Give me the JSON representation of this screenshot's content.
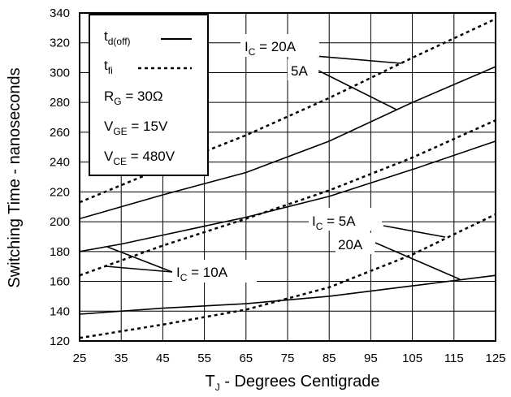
{
  "chart_data": {
    "type": "line",
    "title": "",
    "xlabel": {
      "main": "T",
      "sub": "J",
      "rest": " - Degrees Centigrade"
    },
    "ylabel": "Switching Time - nanoseconds",
    "xlim": [
      25,
      125
    ],
    "ylim": [
      120,
      340
    ],
    "xticks": [
      25,
      35,
      45,
      55,
      65,
      75,
      85,
      95,
      105,
      115,
      125
    ],
    "yticks": [
      120,
      140,
      160,
      180,
      200,
      220,
      240,
      260,
      280,
      300,
      320,
      340
    ],
    "grid": true,
    "legend": {
      "placement": "top-left",
      "entries": [
        {
          "main": "t",
          "sub": "d(off)",
          "style": "solid"
        },
        {
          "main": "t",
          "sub": "fi",
          "style": "dotted"
        }
      ],
      "conditions": [
        {
          "main": "R",
          "sub": "G",
          "rest": " = 30Ω"
        },
        {
          "main": "V",
          "sub": "GE",
          "rest": " = 15V"
        },
        {
          "main": "V",
          "sub": "CE",
          "rest": " = 480V"
        }
      ]
    },
    "series": [
      {
        "style": "solid",
        "x": [
          25,
          45,
          65,
          85,
          105,
          125
        ],
        "y": [
          202,
          218,
          233,
          254,
          280,
          304
        ]
      },
      {
        "style": "dotted",
        "x": [
          25,
          45,
          65,
          85,
          105,
          125
        ],
        "y": [
          213,
          236,
          258,
          283,
          310,
          336
        ]
      },
      {
        "style": "solid",
        "x": [
          25,
          35,
          45,
          65,
          85,
          105,
          125
        ],
        "y": [
          180,
          185,
          191,
          203,
          217,
          235,
          254
        ]
      },
      {
        "style": "dotted",
        "x": [
          25,
          45,
          65,
          85,
          105,
          125
        ],
        "y": [
          164,
          184,
          202,
          221,
          243,
          268
        ]
      },
      {
        "style": "solid",
        "x": [
          25,
          45,
          65,
          85,
          105,
          125
        ],
        "y": [
          138,
          142,
          145,
          150,
          157,
          164
        ]
      },
      {
        "style": "dotted",
        "x": [
          25,
          45,
          65,
          85,
          105,
          125
        ],
        "y": [
          122,
          131,
          141,
          156,
          178,
          205
        ]
      }
    ],
    "annotations": [
      {
        "main": "I",
        "sub": "C",
        "rest": " = 20A"
      },
      {
        "main": "",
        "sub": "",
        "rest": "5A"
      },
      {
        "main": "I",
        "sub": "C",
        "rest": " = 5A"
      },
      {
        "main": "",
        "sub": "",
        "rest": "20A"
      },
      {
        "main": "I",
        "sub": "C",
        "rest": " = 10A"
      }
    ]
  }
}
